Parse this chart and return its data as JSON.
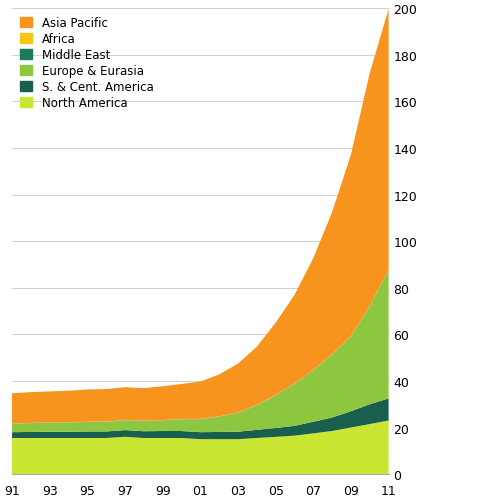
{
  "years": [
    1991,
    1992,
    1993,
    1994,
    1995,
    1996,
    1997,
    1998,
    1999,
    2000,
    2001,
    2002,
    2003,
    2004,
    2005,
    2006,
    2007,
    2008,
    2009,
    2010,
    2011
  ],
  "north_america": [
    15.5,
    15.5,
    15.5,
    15.5,
    15.5,
    15.5,
    16.0,
    15.5,
    15.5,
    15.5,
    15.0,
    15.0,
    15.0,
    15.5,
    16.0,
    16.5,
    17.5,
    18.5,
    20.0,
    21.5,
    23.0
  ],
  "s_cent_america": [
    2.5,
    2.6,
    2.7,
    2.7,
    2.8,
    2.8,
    2.9,
    2.9,
    3.0,
    3.0,
    3.0,
    3.1,
    3.2,
    3.5,
    3.8,
    4.2,
    5.0,
    5.8,
    7.0,
    8.5,
    9.5
  ],
  "europe_eurasia": [
    3.5,
    3.7,
    3.8,
    3.9,
    4.0,
    4.0,
    4.2,
    4.3,
    4.5,
    5.0,
    5.5,
    6.5,
    8.0,
    10.5,
    14.0,
    18.0,
    22.0,
    27.0,
    32.0,
    42.0,
    55.0
  ],
  "middle_east": [
    0.1,
    0.1,
    0.1,
    0.1,
    0.1,
    0.1,
    0.1,
    0.1,
    0.1,
    0.1,
    0.1,
    0.1,
    0.1,
    0.1,
    0.1,
    0.1,
    0.1,
    0.1,
    0.1,
    0.1,
    0.1
  ],
  "africa": [
    0.1,
    0.1,
    0.1,
    0.1,
    0.1,
    0.1,
    0.1,
    0.1,
    0.1,
    0.1,
    0.1,
    0.1,
    0.1,
    0.1,
    0.1,
    0.1,
    0.1,
    0.1,
    0.1,
    0.1,
    0.1
  ],
  "asia_pacific": [
    13.0,
    13.2,
    13.3,
    13.5,
    13.8,
    14.0,
    14.0,
    14.0,
    14.5,
    15.0,
    16.0,
    18.0,
    21.0,
    25.0,
    31.0,
    38.0,
    48.0,
    61.0,
    78.0,
    100.0,
    112.0
  ],
  "colors": [
    "#c8e632",
    "#1a5e4e",
    "#8dc63f",
    "#1a7a5e",
    "#f5c518",
    "#f7941d"
  ],
  "ylim": [
    0,
    200
  ],
  "yticks": [
    0,
    20,
    40,
    60,
    80,
    100,
    120,
    140,
    160,
    180,
    200
  ],
  "xtick_years": [
    1991,
    1993,
    1995,
    1997,
    1999,
    2001,
    2003,
    2005,
    2007,
    2009,
    2011
  ],
  "xtick_labels": [
    "91",
    "93",
    "95",
    "97",
    "99",
    "01",
    "03",
    "05",
    "07",
    "09",
    "11"
  ],
  "legend_entries": [
    [
      "Asia Pacific",
      "#f7941d"
    ],
    [
      "Africa",
      "#f5c518"
    ],
    [
      "Middle East",
      "#1a7a5e"
    ],
    [
      "Europe & Eurasia",
      "#8dc63f"
    ],
    [
      "S. & Cent. America",
      "#1a5e4e"
    ],
    [
      "North America",
      "#c8e632"
    ]
  ],
  "background_color": "#ffffff",
  "grid_color": "#d0d0d0"
}
